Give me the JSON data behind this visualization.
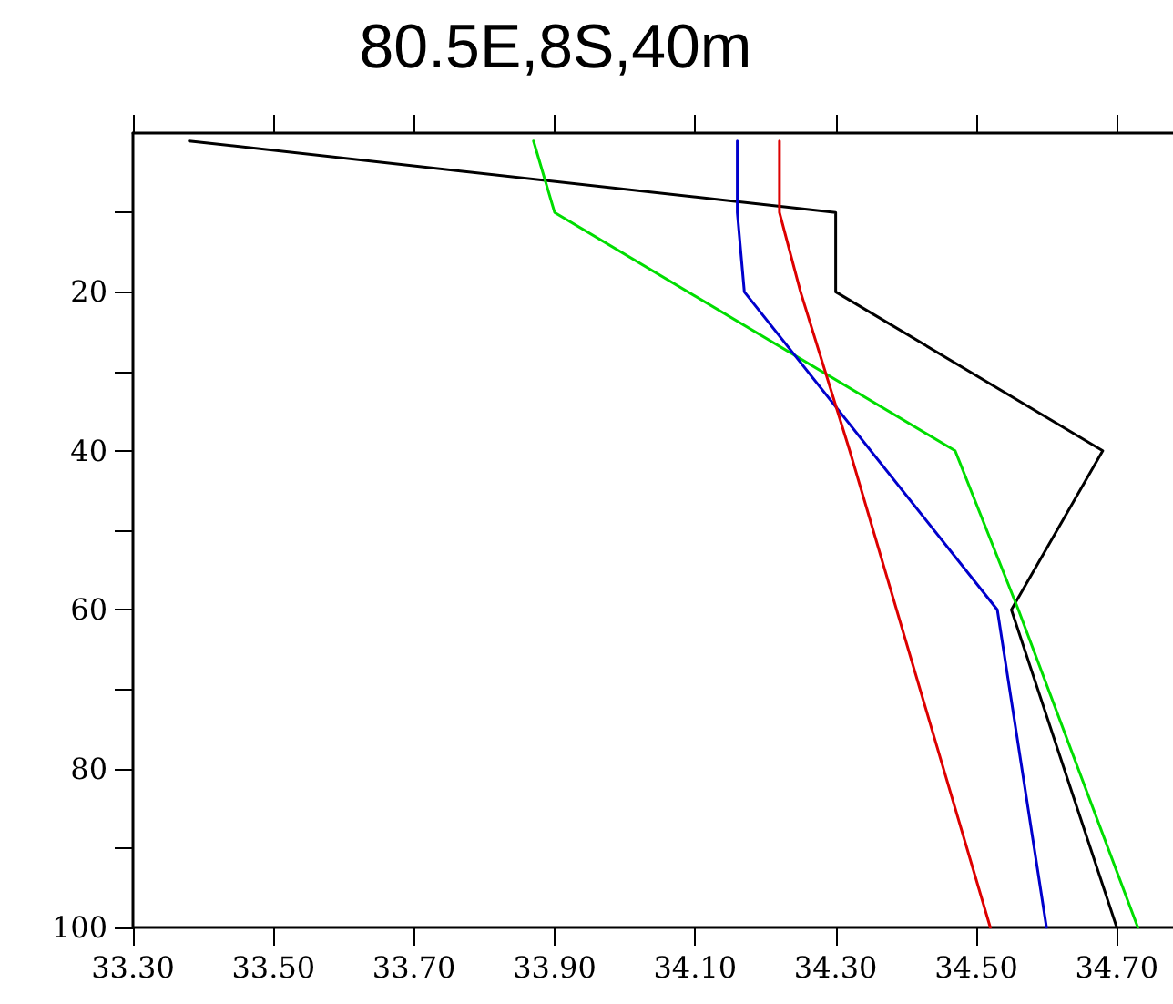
{
  "chart_data": {
    "type": "line",
    "title": "80.5E,8S,40m",
    "xlim": [
      33.3,
      34.78
    ],
    "xticks": [
      {
        "value": 33.3,
        "label": "33.30"
      },
      {
        "value": 33.5,
        "label": "33.50"
      },
      {
        "value": 33.7,
        "label": "33.70"
      },
      {
        "value": 33.9,
        "label": "33.90"
      },
      {
        "value": 34.1,
        "label": "34.10"
      },
      {
        "value": 34.3,
        "label": "34.30"
      },
      {
        "value": 34.5,
        "label": "34.50"
      },
      {
        "value": 34.7,
        "label": "34.70"
      }
    ],
    "ylim": [
      100,
      0
    ],
    "yticks": [
      {
        "value": 10,
        "label": null
      },
      20,
      {
        "value": 30,
        "label": null
      },
      40,
      {
        "value": 50,
        "label": null
      },
      60,
      {
        "value": 70,
        "label": null
      },
      80,
      {
        "value": 90,
        "label": null
      },
      100
    ],
    "grid": false,
    "marker": "none",
    "line_style": "solid",
    "series": [
      {
        "color": "#000000",
        "x": [
          33.38,
          34.3,
          34.3,
          34.68,
          34.55,
          34.7
        ],
        "values": [
          1,
          10,
          20,
          40,
          60,
          100
        ]
      },
      {
        "color": "#00dd00",
        "x": [
          33.87,
          33.9,
          34.47,
          34.56,
          34.73
        ],
        "values": [
          1,
          10,
          40,
          60,
          100
        ]
      },
      {
        "color": "#0000cc",
        "x": [
          34.16,
          34.16,
          34.17,
          34.53,
          34.6
        ],
        "values": [
          1,
          10,
          20,
          60,
          100
        ]
      },
      {
        "color": "#dd0000",
        "x": [
          34.22,
          34.22,
          34.25,
          34.32,
          34.52
        ],
        "values": [
          1,
          10,
          20,
          40,
          100
        ]
      }
    ]
  }
}
